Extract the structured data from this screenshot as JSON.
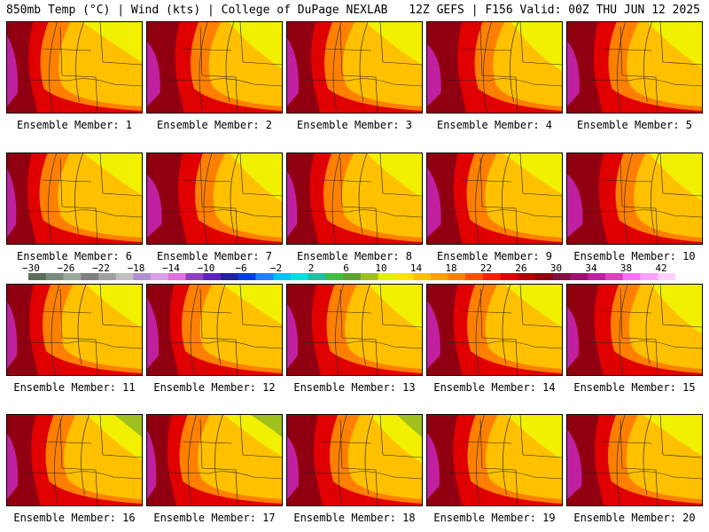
{
  "header": {
    "title": "850mb Temp (°C) | Wind (kts) | College of DuPage NEXLAB",
    "run_info": "12Z GEFS | F156 Valid: 00Z THU JUN 12 2025"
  },
  "members": [
    {
      "label": "Ensemble Member: 1",
      "hot": 0.55
    },
    {
      "label": "Ensemble Member: 2",
      "hot": 0.7
    },
    {
      "label": "Ensemble Member: 3",
      "hot": 0.6
    },
    {
      "label": "Ensemble Member: 4",
      "hot": 0.75
    },
    {
      "label": "Ensemble Member: 5",
      "hot": 0.65
    },
    {
      "label": "Ensemble Member: 6",
      "hot": 0.45
    },
    {
      "label": "Ensemble Member: 7",
      "hot": 0.8
    },
    {
      "label": "Ensemble Member: 8",
      "hot": 0.5
    },
    {
      "label": "Ensemble Member: 9",
      "hot": 0.75
    },
    {
      "label": "Ensemble Member: 10",
      "hot": 0.85
    },
    {
      "label": "Ensemble Member: 11",
      "hot": 0.5
    },
    {
      "label": "Ensemble Member: 12",
      "hot": 0.6
    },
    {
      "label": "Ensemble Member: 13",
      "hot": 0.55
    },
    {
      "label": "Ensemble Member: 14",
      "hot": 0.7
    },
    {
      "label": "Ensemble Member: 15",
      "hot": 0.6
    },
    {
      "label": "Ensemble Member: 16",
      "hot": 0.55
    },
    {
      "label": "Ensemble Member: 17",
      "hot": 0.45
    },
    {
      "label": "Ensemble Member: 18",
      "hot": 0.6
    },
    {
      "label": "Ensemble Member: 19",
      "hot": 0.65
    },
    {
      "label": "Ensemble Member: 20",
      "hot": 0.8
    }
  ],
  "colorbar": {
    "tick_labels": [
      "−30",
      "−26",
      "−22",
      "−18",
      "−14",
      "−10",
      "−6",
      "−2",
      "2",
      "6",
      "10",
      "14",
      "18",
      "22",
      "26",
      "30",
      "34",
      "38",
      "42"
    ],
    "colors": [
      "#5c6c5c",
      "#7c8c7c",
      "#9aa89a",
      "#808080",
      "#a0a0a0",
      "#c0c0c0",
      "#b090d0",
      "#d8a0e8",
      "#e070e0",
      "#9040c0",
      "#6020c0",
      "#2020a0",
      "#0040e0",
      "#2080ff",
      "#00c0ff",
      "#00e0e0",
      "#20c0a0",
      "#40c040",
      "#60a030",
      "#a0c020",
      "#e0f000",
      "#ffe000",
      "#ffc000",
      "#ffa000",
      "#ff8000",
      "#ff5000",
      "#ff2000",
      "#e00000",
      "#b00000",
      "#900010",
      "#801040",
      "#a01070",
      "#c020a0",
      "#e040c0",
      "#ff70ff",
      "#ffa0ff",
      "#ffd0ff"
    ]
  }
}
